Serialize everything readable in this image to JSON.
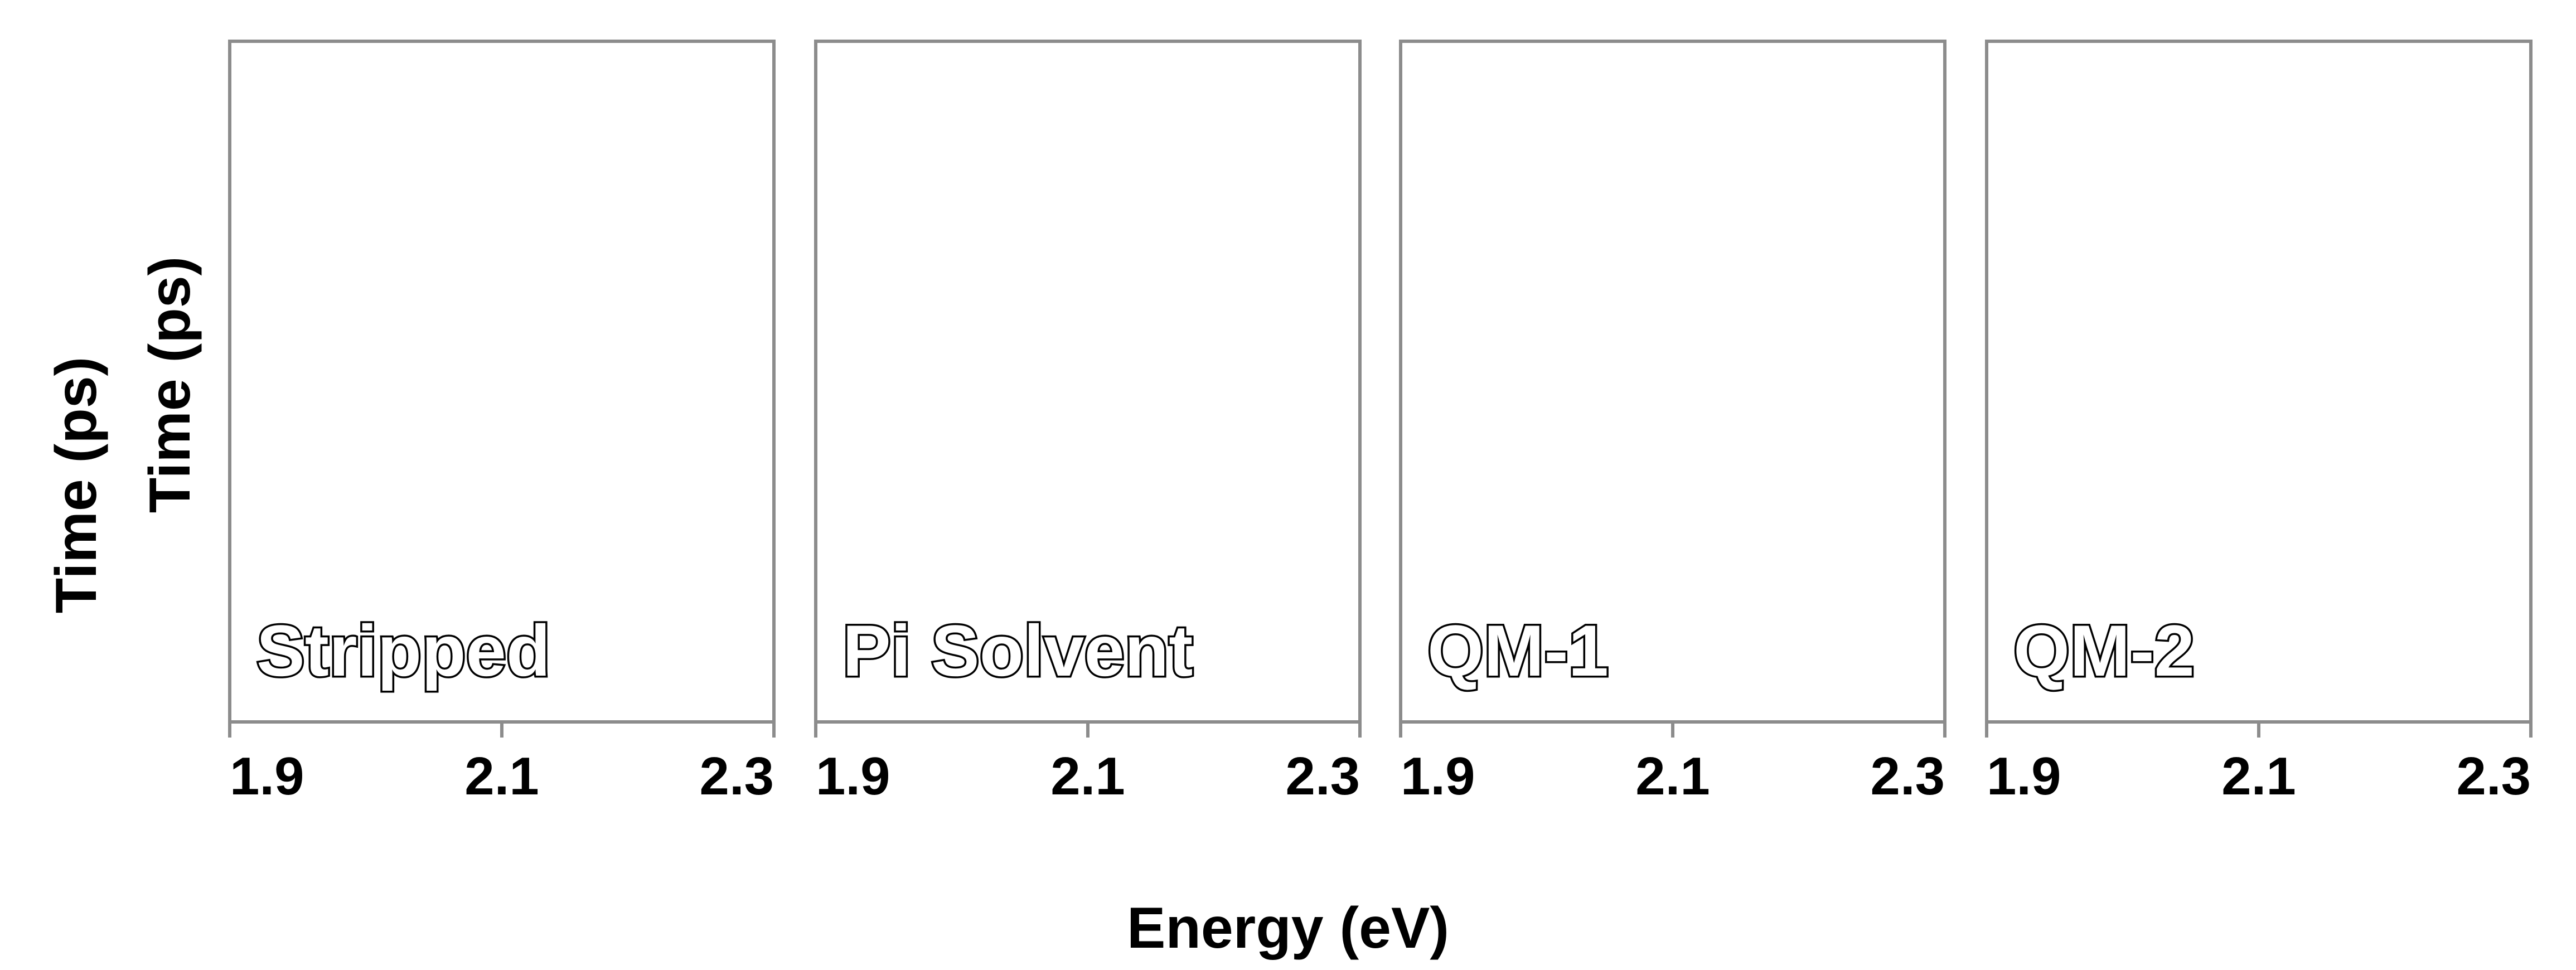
{
  "chart_data": {
    "type": "heatmap",
    "layout": "four side-by-side panels sharing y-axis title and x-axis title",
    "xlabel": "Energy (eV)",
    "ylabel_lines": [
      "Time (ps)",
      "Time (ps)"
    ],
    "xlim": [
      1.9,
      2.3
    ],
    "x_ticks": [
      1.9,
      2.1,
      2.3
    ],
    "x_tick_labels": [
      "1.9",
      "2.1",
      "2.3"
    ],
    "y_ticks_shown": false,
    "grid": false,
    "panels": [
      {
        "label": "Stripped",
        "values": []
      },
      {
        "label": "Pi Solvent",
        "values": []
      },
      {
        "label": "QM-1",
        "values": []
      },
      {
        "label": "QM-2",
        "values": []
      }
    ],
    "colors": {
      "frame": "#8c8c8c",
      "text": "#000000",
      "panel_fill": "#ffffff"
    }
  }
}
